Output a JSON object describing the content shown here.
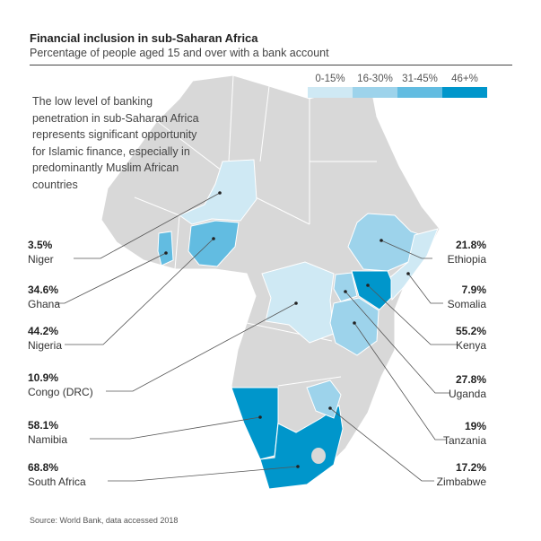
{
  "title": "Financial inclusion in sub-Saharan Africa",
  "subtitle": "Percentage of people aged 15 and over with a bank account",
  "annotation": "The low level of banking penetration in sub-Saharan Africa represents significant opportunity for Islamic finance, especially in predominantly Muslim African countries",
  "legend": [
    {
      "label": "0-15%",
      "color": "#cfe9f4"
    },
    {
      "label": "16-30%",
      "color": "#9dd3eb"
    },
    {
      "label": "31-45%",
      "color": "#62bce1"
    },
    {
      "label": "46+%",
      "color": "#0096cb"
    }
  ],
  "land_color": "#d8d8d8",
  "countries": {
    "niger": {
      "value": "3.5%",
      "name": "Niger",
      "bin": 0
    },
    "ghana": {
      "value": "34.6%",
      "name": "Ghana",
      "bin": 2
    },
    "nigeria": {
      "value": "44.2%",
      "name": "Nigeria",
      "bin": 2
    },
    "congo": {
      "value": "10.9%",
      "name": "Congo (DRC)",
      "bin": 0
    },
    "namibia": {
      "value": "58.1%",
      "name": "Namibia",
      "bin": 3
    },
    "south_africa": {
      "value": "68.8%",
      "name": "South Africa",
      "bin": 3
    },
    "ethiopia": {
      "value": "21.8%",
      "name": "Ethiopia",
      "bin": 1
    },
    "somalia": {
      "value": "7.9%",
      "name": "Somalia",
      "bin": 0
    },
    "kenya": {
      "value": "55.2%",
      "name": "Kenya",
      "bin": 3
    },
    "uganda": {
      "value": "27.8%",
      "name": "Uganda",
      "bin": 1
    },
    "tanzania": {
      "value": "19%",
      "name": "Tanzania",
      "bin": 1
    },
    "zimbabwe": {
      "value": "17.2%",
      "name": "Zimbabwe",
      "bin": 1
    }
  },
  "source": "Source: World Bank, data accessed 2018"
}
